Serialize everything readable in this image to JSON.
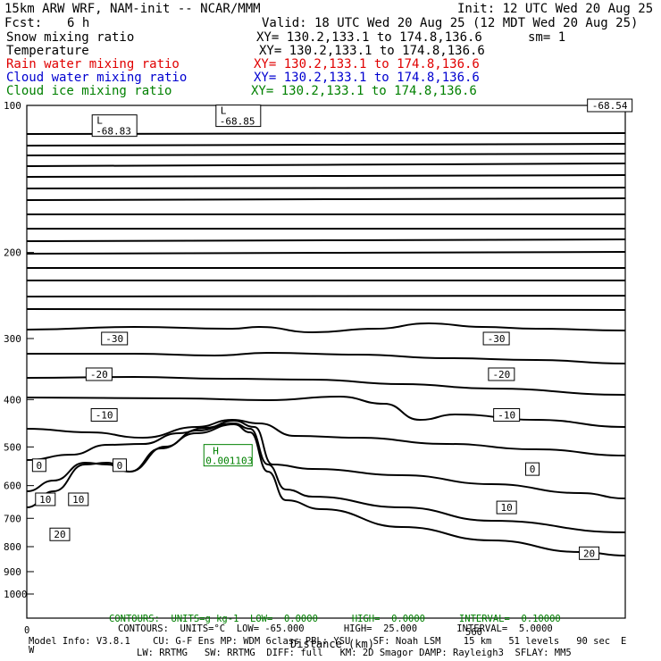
{
  "header": {
    "model": "15km ARW WRF, NAM-init -- NCAR/MMM",
    "init": "Init: 12 UTC Wed 20 Aug 25",
    "fcst_label": "Fcst:",
    "fcst_value": "6 h",
    "valid": "Valid: 18 UTC Wed 20 Aug 25 (12 MDT Wed 20 Aug 25)",
    "fields": [
      {
        "name": "Snow mixing ratio",
        "xy": "XY= 130.2,133.1 to 174.8,136.6",
        "extra": "sm= 1",
        "color": "#000000"
      },
      {
        "name": "Temperature",
        "xy": "XY= 130.2,133.1 to 174.8,136.6",
        "extra": "",
        "color": "#000000"
      },
      {
        "name": "Rain water mixing ratio",
        "xy": "XY= 130.2,133.1 to 174.8,136.6",
        "extra": "",
        "color": "#e00000"
      },
      {
        "name": "Cloud water mixing ratio",
        "xy": "XY= 130.2,133.1 to 174.8,136.6",
        "extra": "",
        "color": "#0000d0"
      },
      {
        "name": "Cloud ice mixing ratio",
        "xy": "XY= 130.2,133.1 to 174.8,136.6",
        "extra": "",
        "color": "#008000"
      }
    ]
  },
  "footer": {
    "contours_green": "CONTOURS:  UNITS=g kg-1  LOW=  0.0000      HIGH=  0.0000      INTERVAL=  0.10000",
    "contours_black": "CONTOURS:  UNITS=°C  LOW= -65.000       HIGH=  25.000       INTERVAL=  5.0000",
    "xaxis_label": "Distance (km)",
    "x_tick_0": "0",
    "x_tick_560": "560",
    "model_info_1": "Model Info: V3.8.1    CU: G-F Ens MP: WDM 6class PBL: YSU    SF: Noah LSM    15 km   51 levels   90 sec",
    "model_info_2": "LW: RRTMG   SW: RRTMG  DIFF: full   KM: 2D Smagor DAMP: Rayleigh3  SFLAY: MM5",
    "corner_left": "W",
    "corner_right": "E"
  },
  "chart_data": {
    "type": "contour",
    "x_axis": {
      "label": "Distance (km)",
      "ticks_shown": [
        0,
        560
      ],
      "range": [
        0,
        580
      ]
    },
    "y_axis": {
      "label": "",
      "unit": "hPa",
      "range": [
        1000,
        100
      ],
      "scale": "log-pressure",
      "tick_labels": [
        "100",
        "200",
        "300",
        "400",
        "500",
        "600",
        "700",
        "800",
        "900",
        "1000"
      ]
    },
    "temperature_contours_C": [
      -65,
      -60,
      -55,
      -50,
      -45,
      -40,
      -35,
      -30,
      -25,
      -20,
      -15,
      -10,
      -5,
      0,
      5,
      10,
      15,
      20,
      25
    ],
    "temperature_labels": [
      {
        "value": "-68.83",
        "kind": "L",
        "x_km": 85,
        "p_hpa": 110
      },
      {
        "value": "-68.85",
        "kind": "L",
        "x_km": 205,
        "p_hpa": 105
      },
      {
        "value": "-68.54",
        "kind": "",
        "x_km": 565,
        "p_hpa": 100
      },
      {
        "value": "-30",
        "kind": "",
        "x_km": 85,
        "p_hpa": 300
      },
      {
        "value": "-30",
        "kind": "",
        "x_km": 455,
        "p_hpa": 300
      },
      {
        "value": "-20",
        "kind": "",
        "x_km": 70,
        "p_hpa": 355
      },
      {
        "value": "-20",
        "kind": "",
        "x_km": 460,
        "p_hpa": 355
      },
      {
        "value": "-10",
        "kind": "",
        "x_km": 75,
        "p_hpa": 430
      },
      {
        "value": "-10",
        "kind": "",
        "x_km": 465,
        "p_hpa": 430
      },
      {
        "value": "0",
        "kind": "",
        "x_km": 12,
        "p_hpa": 545
      },
      {
        "value": "0",
        "kind": "",
        "x_km": 90,
        "p_hpa": 545
      },
      {
        "value": "0",
        "kind": "",
        "x_km": 490,
        "p_hpa": 555
      },
      {
        "value": "10",
        "kind": "",
        "x_km": 18,
        "p_hpa": 640
      },
      {
        "value": "10",
        "kind": "",
        "x_km": 50,
        "p_hpa": 640
      },
      {
        "value": "10",
        "kind": "",
        "x_km": 465,
        "p_hpa": 665
      },
      {
        "value": "20",
        "kind": "",
        "x_km": 32,
        "p_hpa": 755
      },
      {
        "value": "20",
        "kind": "",
        "x_km": 545,
        "p_hpa": 825
      }
    ],
    "cloud_ice_max": {
      "kind": "H",
      "value": "0.001103",
      "x_km": 195,
      "p_hpa": 520,
      "color": "#008000"
    }
  }
}
